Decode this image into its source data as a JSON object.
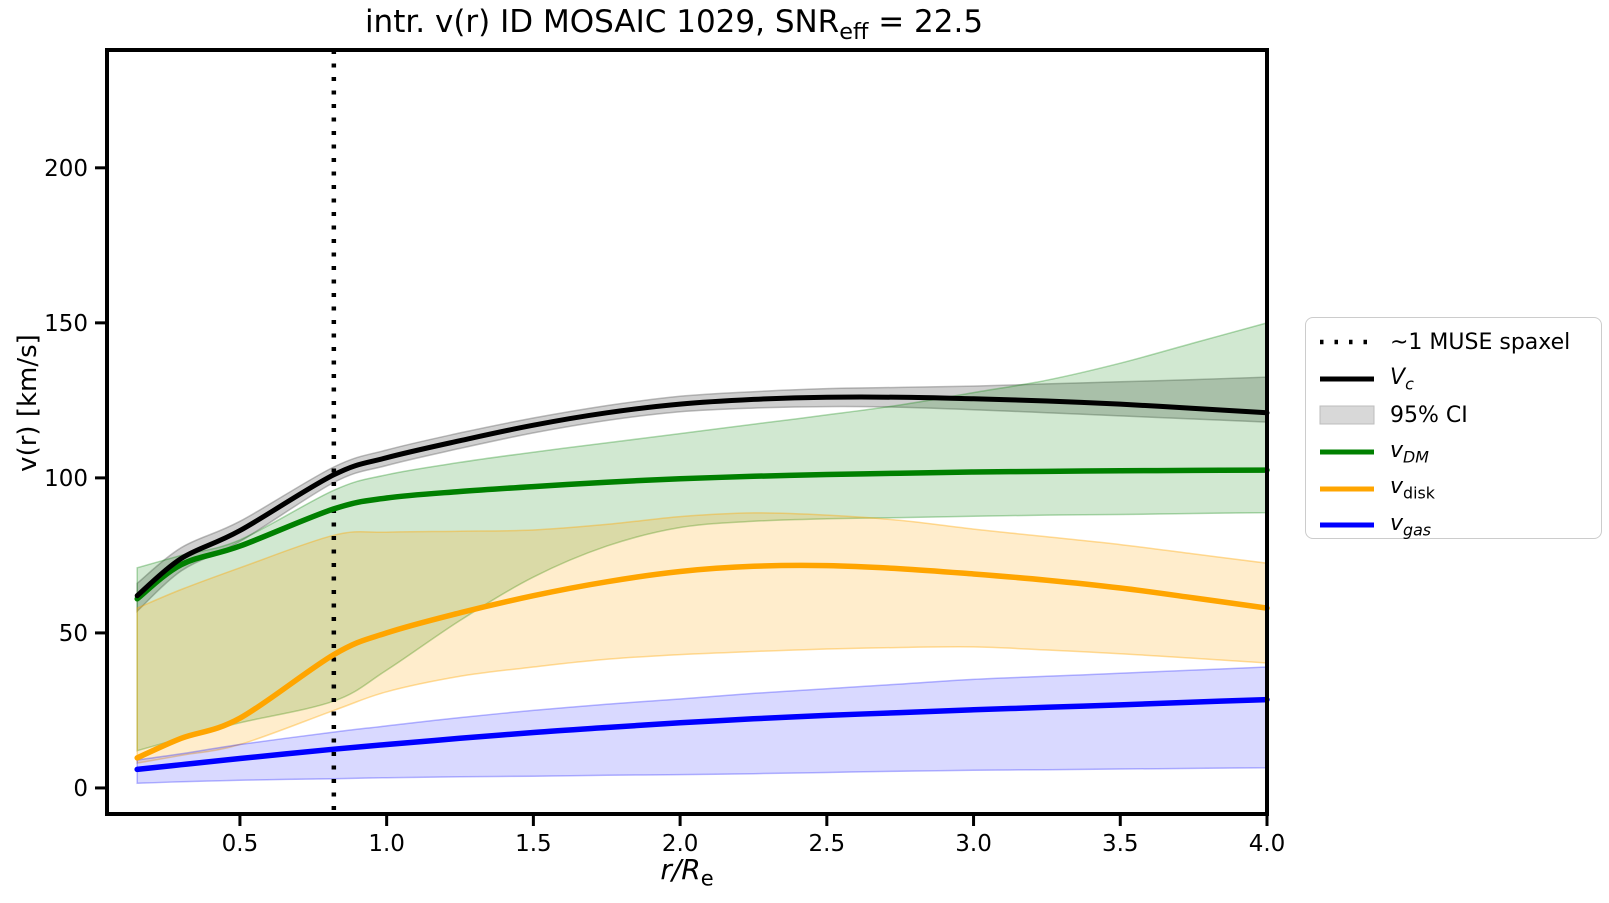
{
  "title": {
    "prefix": "intr. v(r) ID MOSAIC 1029, SNR",
    "sub": "eff",
    "suffix": " = 22.5"
  },
  "axes": {
    "ylabel": "v(r) [km/s]",
    "xlabel_main": "r/R",
    "xlabel_sub": "e"
  },
  "legend": {
    "entries": [
      {
        "name": "muse-spaxel",
        "swatch": "dotted-line",
        "color": "#000000",
        "label": {
          "main": "~1 MUSE spaxel",
          "sub": ""
        }
      },
      {
        "name": "vc",
        "swatch": "line",
        "color": "#000000",
        "label": {
          "main": "V",
          "sub": "c"
        }
      },
      {
        "name": "ci",
        "swatch": "patch",
        "color": "#d8d8d8",
        "patch_edge": "#bdbdbd",
        "label": {
          "main": "95% CI",
          "sub": ""
        }
      },
      {
        "name": "vdm",
        "swatch": "line",
        "color": "#008000",
        "label": {
          "main": "v",
          "sub": "DM"
        }
      },
      {
        "name": "vdisk",
        "swatch": "line",
        "color": "#ffa500",
        "label": {
          "main": "v",
          "sub": "disk"
        }
      },
      {
        "name": "vgas",
        "swatch": "line",
        "color": "#0000ff",
        "label": {
          "main": "v",
          "sub": "gas"
        }
      }
    ]
  },
  "chart_data": {
    "type": "line",
    "title": "intr. v(r) ID MOSAIC 1029, SNR_eff = 22.5",
    "xlabel": "r/R_e",
    "ylabel": "v(r) [km/s]",
    "xlim": [
      0.047,
      4.0
    ],
    "ylim": [
      -8.4,
      238
    ],
    "x_ticks": [
      0.5,
      1.0,
      1.5,
      2.0,
      2.5,
      3.0,
      3.5,
      4.0
    ],
    "x_tick_labels": [
      "0.5",
      "1.0",
      "1.5",
      "2.0",
      "2.5",
      "3.0",
      "3.5",
      "4.0"
    ],
    "y_ticks": [
      0,
      50,
      100,
      150,
      200
    ],
    "y_tick_labels": [
      "0",
      "50",
      "100",
      "150",
      "200"
    ],
    "grid": false,
    "legend_position": "right-outside",
    "annotations": {
      "vline": {
        "x": 0.82,
        "style": "dotted",
        "color": "#000000",
        "label": "~1 MUSE spaxel"
      }
    },
    "x": [
      0.15,
      0.3,
      0.5,
      0.82,
      1.0,
      1.25,
      1.5,
      1.75,
      2.0,
      2.25,
      2.5,
      2.75,
      3.0,
      3.25,
      3.5,
      3.75,
      4.0
    ],
    "series": [
      {
        "name": "V_c",
        "kind": "line-with-band",
        "band_label": "95% CI",
        "line_color": "#000000",
        "band_color": "rgba(128,128,128,0.38)",
        "band_edge": "rgba(110,110,110,0.45)",
        "y": [
          62,
          74,
          83,
          101,
          106.5,
          112,
          117,
          121,
          123.8,
          125.3,
          126,
          126,
          125.5,
          124.8,
          123.8,
          122.4,
          121
        ],
        "band_lo": [
          57,
          70,
          79.5,
          98.5,
          104,
          109.5,
          114.5,
          118.5,
          121.3,
          122.5,
          123,
          122.8,
          122,
          121,
          120,
          119,
          118
        ],
        "band_hi": [
          66,
          77.5,
          86,
          103.5,
          109,
          114.5,
          119.3,
          123.3,
          126.3,
          127.8,
          128.8,
          129.2,
          129.6,
          130.3,
          131,
          131.7,
          132.5
        ]
      },
      {
        "name": "v_DM",
        "kind": "line-with-band",
        "line_color": "#008000",
        "band_color": "rgba(0,128,0,0.18)",
        "band_edge": "rgba(0,128,0,0.30)",
        "y": [
          61,
          72,
          78,
          90,
          93.5,
          95.6,
          97.2,
          98.6,
          99.7,
          100.5,
          101.1,
          101.5,
          101.9,
          102.1,
          102.3,
          102.4,
          102.5
        ],
        "band_lo": [
          12,
          16,
          21,
          28,
          38,
          54,
          68,
          78,
          84,
          86,
          86.8,
          87.2,
          87.6,
          88,
          88.2,
          88.5,
          88.8
        ],
        "band_hi": [
          71,
          75,
          80,
          96,
          101,
          105,
          108.3,
          111.3,
          114.3,
          117.3,
          120.3,
          123.5,
          127.5,
          131.5,
          137,
          143.5,
          150
        ]
      },
      {
        "name": "v_disk",
        "kind": "line-with-band",
        "line_color": "#ffa500",
        "band_color": "rgba(255,165,0,0.20)",
        "band_edge": "rgba(255,165,0,0.38)",
        "y": [
          9.7,
          16,
          22.5,
          43,
          50,
          56.5,
          62,
          66.5,
          69.8,
          71.5,
          71.7,
          70.7,
          69,
          67,
          64.5,
          61.3,
          58
        ],
        "band_lo": [
          8,
          10.5,
          14,
          25,
          31,
          36,
          39,
          41.5,
          43,
          44,
          44.8,
          45.3,
          45.5,
          44.5,
          43.3,
          41.8,
          40.3
        ],
        "band_hi": [
          58,
          64,
          71,
          81.5,
          82.5,
          82.8,
          83.2,
          85,
          87.5,
          88.7,
          88,
          86.3,
          83.5,
          81,
          78.5,
          75.5,
          72.5
        ]
      },
      {
        "name": "v_gas",
        "kind": "line-with-band",
        "line_color": "#0000ff",
        "band_color": "rgba(0,0,255,0.15)",
        "band_edge": "rgba(0,0,255,0.28)",
        "y": [
          6,
          7.5,
          9.5,
          12.5,
          14,
          16,
          17.9,
          19.5,
          21,
          22.3,
          23.4,
          24.3,
          25.2,
          26,
          26.8,
          27.7,
          28.5
        ],
        "band_lo": [
          1.5,
          2,
          2.5,
          3,
          3.3,
          3.6,
          3.8,
          4.1,
          4.3,
          4.6,
          5,
          5.4,
          5.7,
          5.9,
          6.1,
          6.3,
          6.5
        ],
        "band_hi": [
          9,
          11,
          14,
          18,
          20,
          22.7,
          25,
          27,
          28.7,
          30.5,
          32,
          33.5,
          35,
          36,
          37,
          38,
          39
        ]
      }
    ]
  }
}
